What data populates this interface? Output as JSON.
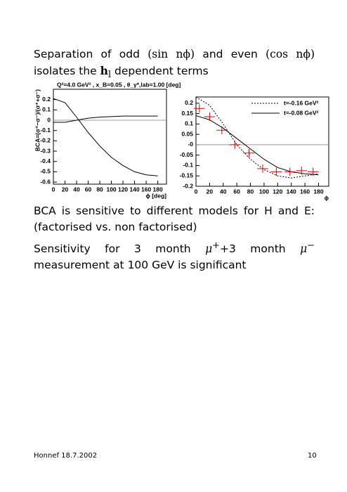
{
  "paragraphs": [
    [
      "Separation of odd ",
      "(sin nϕ)",
      " and even ",
      "(cos nϕ)",
      " isolates the ",
      "h",
      "l",
      " dependent terms"
    ],
    [
      "BCA is sensitive to different models for H and E: (factorised vs. non factorised)"
    ],
    [
      "Sensitivity for 3 month ",
      "μ",
      "+",
      "+3 month ",
      "μ",
      "−",
      " measurement at 100 GeV is significant"
    ]
  ],
  "footer": {
    "left": "Honnef 18.7.2002",
    "page": "10"
  },
  "chart_data": [
    {
      "type": "line",
      "title": "Q²=4.0 GeV² , x_B=0.05 , θ_γ*,lab=1.00 [deg]",
      "x_label": "ϕ [deg]",
      "y_label": "BCA=(σ⁺−σ⁻)/(σ⁺+σ⁻)",
      "xlim": [
        0,
        195
      ],
      "ylim": [
        -0.62,
        0.3
      ],
      "xticks": [
        0,
        20,
        40,
        60,
        80,
        100,
        120,
        140,
        160,
        180
      ],
      "yticks": [
        -0.6,
        -0.5,
        -0.4,
        -0.3,
        -0.2,
        -0.1,
        0,
        0.1,
        0.2
      ],
      "zero_line": true,
      "series": [
        {
          "color": "#000000",
          "style": "solid",
          "x": [
            0,
            20,
            40,
            60,
            80,
            100,
            120,
            140,
            160,
            180
          ],
          "values": [
            0.21,
            0.17,
            0.03,
            -0.12,
            -0.25,
            -0.36,
            -0.44,
            -0.5,
            -0.53,
            -0.54
          ]
        },
        {
          "color": "#000000",
          "style": "solid",
          "x": [
            0,
            20,
            40,
            60,
            80,
            100,
            120,
            140,
            160,
            180
          ],
          "values": [
            -0.02,
            -0.02,
            0.0,
            0.02,
            0.03,
            0.035,
            0.04,
            0.04,
            0.04,
            0.04
          ]
        }
      ]
    },
    {
      "type": "line",
      "x_label": "ϕ",
      "xlim": [
        0,
        195
      ],
      "ylim": [
        -0.2,
        0.23
      ],
      "xticks": [
        0,
        20,
        40,
        60,
        80,
        100,
        120,
        140,
        160,
        180
      ],
      "yticks": [
        -0.2,
        -0.15,
        -0.1,
        -0.05,
        {
          "value": 0,
          "label": "-0"
        },
        0.05,
        0.1,
        0.15,
        0.2
      ],
      "zero_line": true,
      "legend": "upper right",
      "series": [
        {
          "name": "t=-0.16 GeV²",
          "color": "#000000",
          "style": "dotted",
          "x": [
            0,
            20,
            40,
            60,
            80,
            100,
            120,
            140,
            160,
            180
          ],
          "values": [
            0.23,
            0.19,
            0.1,
            0.0,
            -0.07,
            -0.12,
            -0.15,
            -0.16,
            -0.15,
            -0.14
          ]
        },
        {
          "name": "t=-0.08 GeV²",
          "color": "#000000",
          "style": "solid",
          "x": [
            0,
            20,
            40,
            60,
            80,
            100,
            120,
            140,
            160,
            180
          ],
          "values": [
            0.14,
            0.12,
            0.08,
            0.03,
            -0.02,
            -0.07,
            -0.11,
            -0.13,
            -0.14,
            -0.145
          ]
        }
      ],
      "points": {
        "color": "#dd0000",
        "x": [
          5,
          20,
          38,
          57,
          78,
          98,
          118,
          138,
          155,
          172
        ],
        "values": [
          0.175,
          0.135,
          0.07,
          0.0,
          -0.04,
          -0.115,
          -0.13,
          -0.13,
          -0.125,
          -0.13
        ],
        "xerr": [
          8,
          8,
          8,
          8,
          8,
          8,
          8,
          8,
          8,
          8
        ],
        "yerr": [
          0.02,
          0.02,
          0.02,
          0.02,
          0.02,
          0.02,
          0.02,
          0.02,
          0.02,
          0.02
        ]
      }
    }
  ]
}
